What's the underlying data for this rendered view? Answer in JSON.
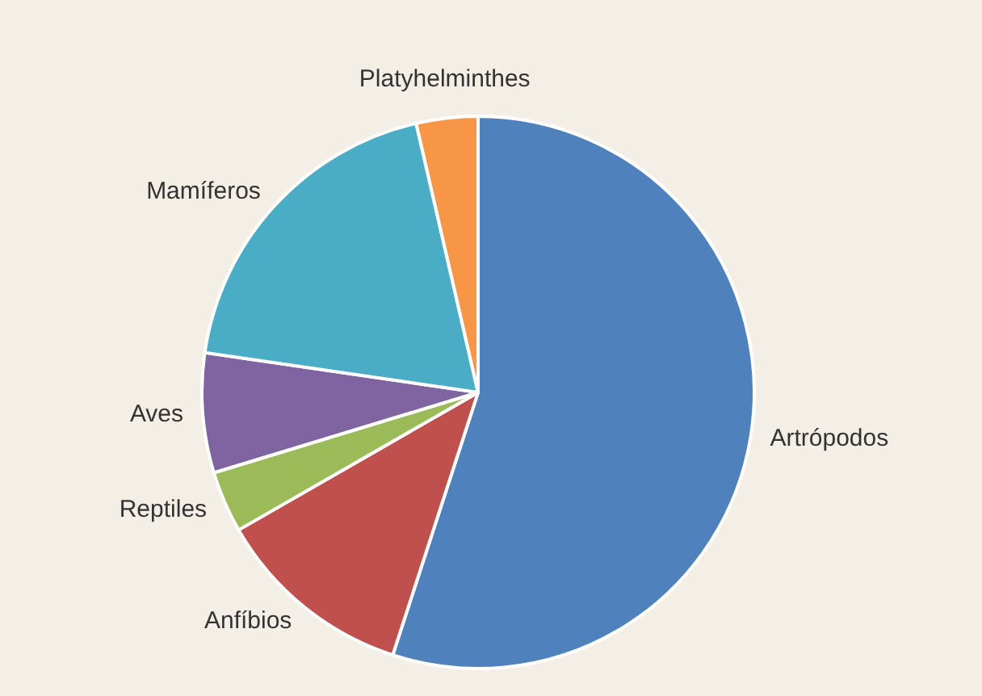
{
  "chart_data": {
    "type": "pie",
    "categories": [
      "Artrópodos",
      "Anfíbios",
      "Reptiles",
      "Aves",
      "Mamíferos",
      "Platyhelminthes"
    ],
    "values": [
      55,
      11.7,
      3.6,
      7,
      19.1,
      3.6
    ],
    "colors": [
      "#4f81bd",
      "#c0504d",
      "#9bbb59",
      "#8064a2",
      "#4bacc6",
      "#f79646"
    ],
    "legend": false
  }
}
